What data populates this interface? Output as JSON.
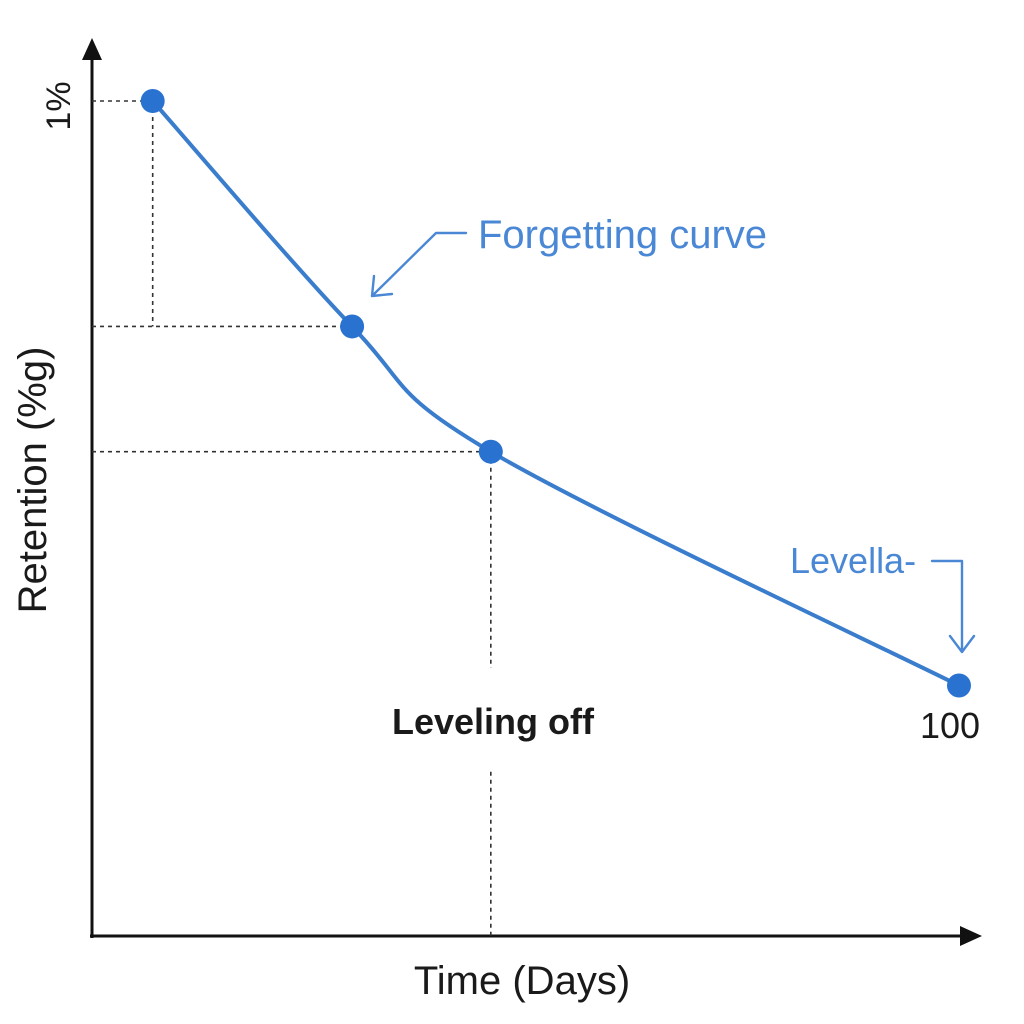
{
  "chart_data": {
    "type": "line",
    "xlabel": "Time (Days)",
    "ylabel": "Retention (%g)",
    "y_tick_top": "1%",
    "x_end_label": "100",
    "series": [
      {
        "points": [
          {
            "x": 0.07,
            "y": 1.0
          },
          {
            "x": 0.3,
            "y": 0.73
          },
          {
            "x": 0.46,
            "y": 0.58
          },
          {
            "x": 1.0,
            "y": 0.3
          }
        ]
      }
    ],
    "annotations": [
      {
        "text": "Forgetting curve"
      },
      {
        "text": "Levella-"
      },
      {
        "text": "Leveling off"
      }
    ],
    "grid": false,
    "colors": {
      "curve": "#3a7dcc",
      "point": "#2a72cf",
      "annotation": "#4a88d6",
      "axis": "#111111"
    }
  }
}
